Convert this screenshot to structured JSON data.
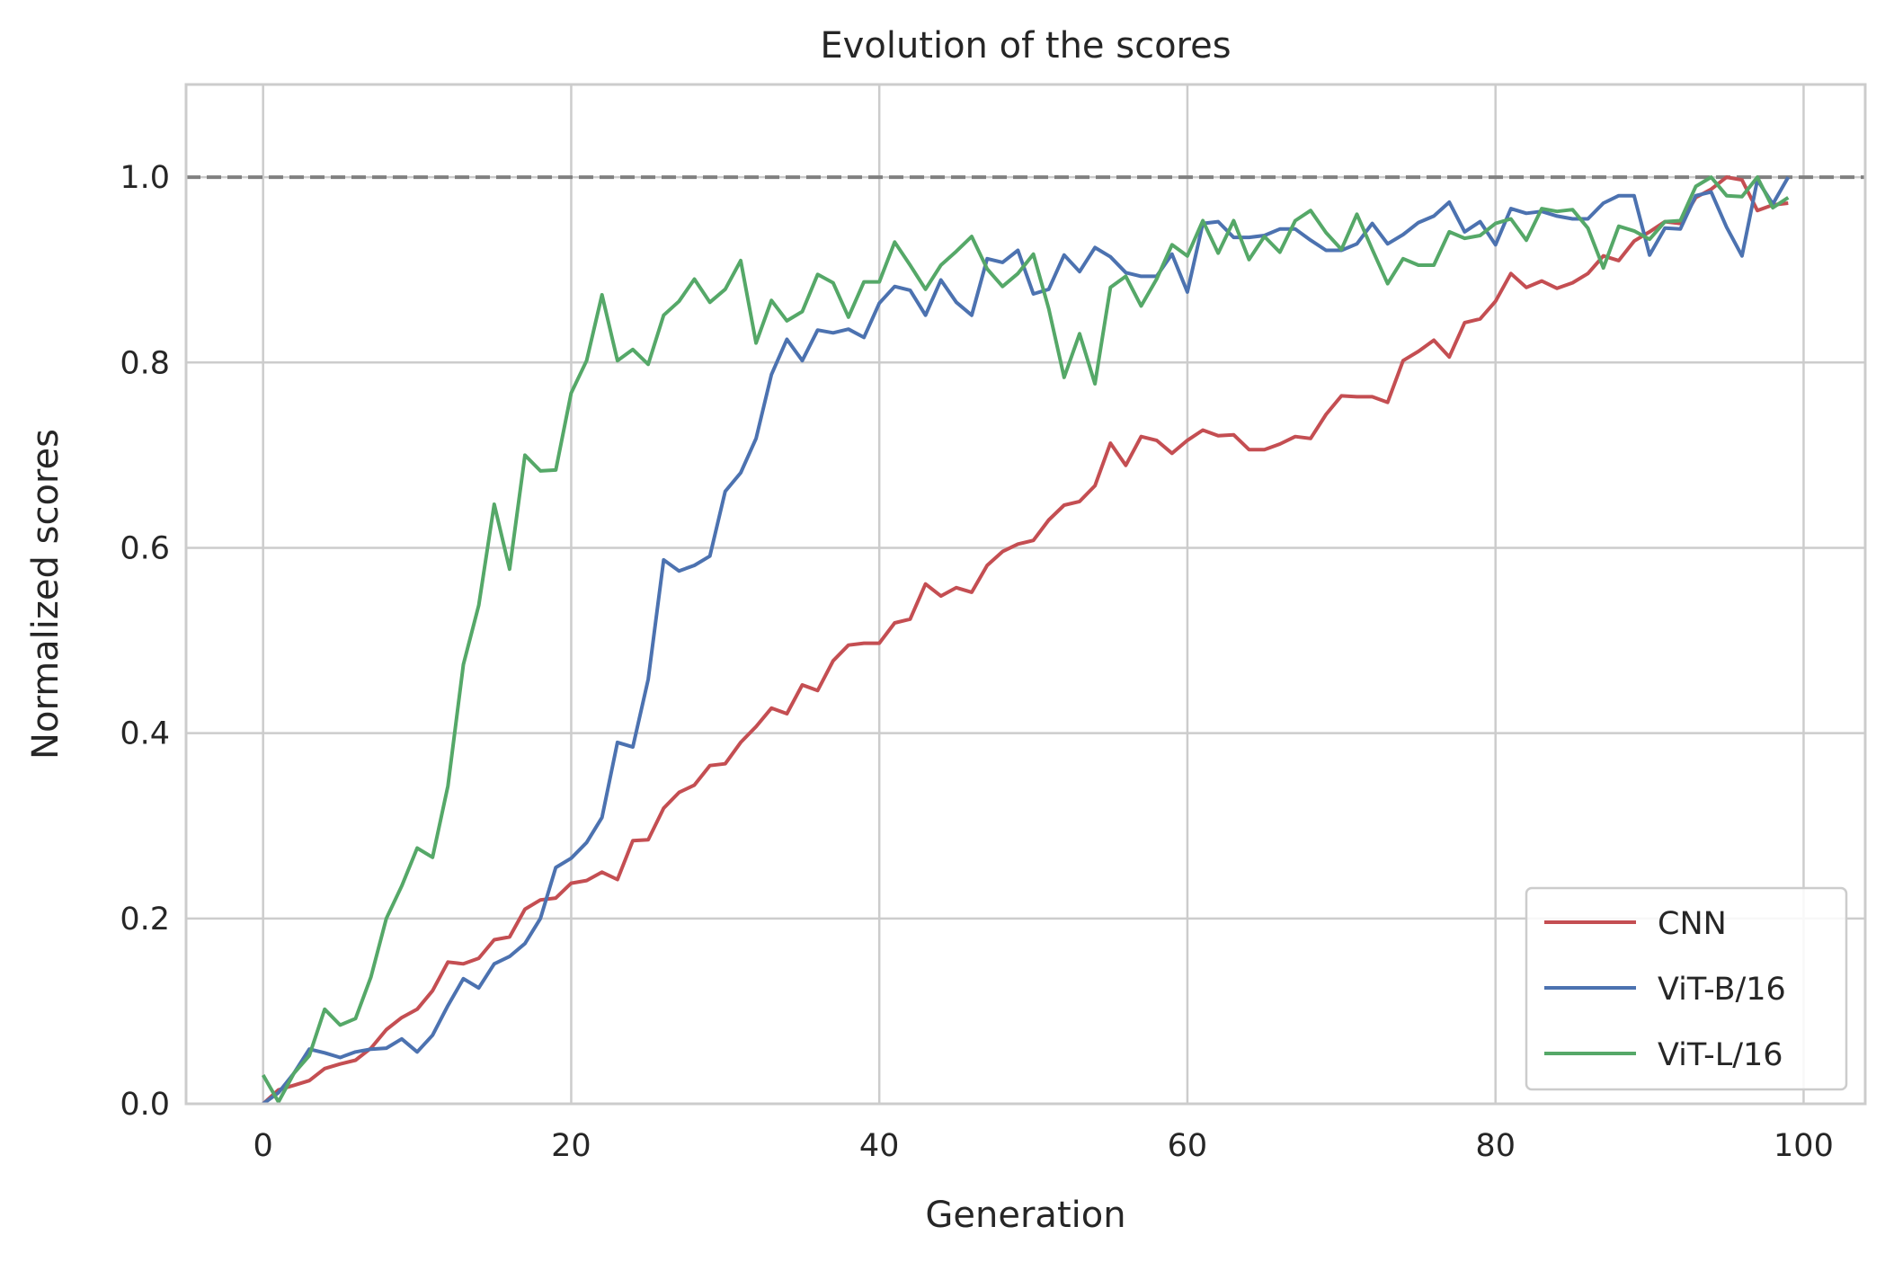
{
  "chart_data": {
    "type": "line",
    "title": "Evolution of the scores",
    "xlabel": "Generation",
    "ylabel": "Normalized scores",
    "xlim": [
      -5,
      104
    ],
    "ylim": [
      0,
      1.1
    ],
    "x_ticks": [
      0,
      20,
      40,
      60,
      80,
      100
    ],
    "y_ticks": [
      0.0,
      0.2,
      0.4,
      0.6,
      0.8,
      1.0
    ],
    "x_tick_labels": [
      "0",
      "20",
      "40",
      "60",
      "80",
      "100"
    ],
    "y_tick_labels": [
      "0.0",
      "0.2",
      "0.4",
      "0.6",
      "0.8",
      "1.0"
    ],
    "grid": true,
    "reference_line": {
      "y": 1.0,
      "style": "dashed",
      "color": "#808080"
    },
    "legend_position": "lower-right",
    "x": [
      0,
      1,
      2,
      3,
      4,
      5,
      6,
      7,
      8,
      9,
      10,
      11,
      12,
      13,
      14,
      15,
      16,
      17,
      18,
      19,
      20,
      21,
      22,
      23,
      24,
      25,
      26,
      27,
      28,
      29,
      30,
      31,
      32,
      33,
      34,
      35,
      36,
      37,
      38,
      39,
      40,
      41,
      42,
      43,
      44,
      45,
      46,
      47,
      48,
      49,
      50,
      51,
      52,
      53,
      54,
      55,
      56,
      57,
      58,
      59,
      60,
      61,
      62,
      63,
      64,
      65,
      66,
      67,
      68,
      69,
      70,
      71,
      72,
      73,
      74,
      75,
      76,
      77,
      78,
      79,
      80,
      81,
      82,
      83,
      84,
      85,
      86,
      87,
      88,
      89,
      90,
      91,
      92,
      93,
      94,
      95,
      96,
      97,
      98,
      99
    ],
    "series": [
      {
        "name": "CNN",
        "color": "#c44e52",
        "values": [
          0.0,
          0.015,
          0.02,
          0.025,
          0.038,
          0.043,
          0.047,
          0.06,
          0.08,
          0.093,
          0.102,
          0.122,
          0.153,
          0.151,
          0.157,
          0.177,
          0.18,
          0.21,
          0.22,
          0.222,
          0.238,
          0.241,
          0.25,
          0.242,
          0.284,
          0.285,
          0.319,
          0.336,
          0.344,
          0.365,
          0.367,
          0.39,
          0.407,
          0.427,
          0.421,
          0.452,
          0.446,
          0.478,
          0.495,
          0.497,
          0.497,
          0.519,
          0.523,
          0.561,
          0.548,
          0.557,
          0.552,
          0.581,
          0.596,
          0.604,
          0.608,
          0.63,
          0.646,
          0.65,
          0.667,
          0.713,
          0.689,
          0.72,
          0.716,
          0.702,
          0.716,
          0.727,
          0.721,
          0.722,
          0.706,
          0.706,
          0.712,
          0.72,
          0.718,
          0.744,
          0.764,
          0.763,
          0.763,
          0.757,
          0.802,
          0.812,
          0.824,
          0.806,
          0.843,
          0.847,
          0.866,
          0.896,
          0.881,
          0.888,
          0.88,
          0.886,
          0.896,
          0.915,
          0.91,
          0.931,
          0.941,
          0.952,
          0.95,
          0.978,
          0.987,
          1.0,
          0.997,
          0.964,
          0.97,
          0.972
        ]
      },
      {
        "name": "ViT-B/16",
        "color": "#4c72b0",
        "values": [
          0.0,
          0.012,
          0.033,
          0.059,
          0.055,
          0.05,
          0.056,
          0.059,
          0.06,
          0.07,
          0.056,
          0.074,
          0.106,
          0.135,
          0.125,
          0.151,
          0.159,
          0.173,
          0.2,
          0.255,
          0.265,
          0.282,
          0.309,
          0.39,
          0.385,
          0.458,
          0.587,
          0.575,
          0.581,
          0.591,
          0.661,
          0.681,
          0.718,
          0.787,
          0.825,
          0.802,
          0.835,
          0.832,
          0.836,
          0.827,
          0.864,
          0.882,
          0.878,
          0.851,
          0.889,
          0.865,
          0.851,
          0.912,
          0.908,
          0.921,
          0.874,
          0.879,
          0.916,
          0.898,
          0.924,
          0.914,
          0.897,
          0.893,
          0.893,
          0.917,
          0.876,
          0.95,
          0.952,
          0.935,
          0.935,
          0.937,
          0.944,
          0.944,
          0.932,
          0.921,
          0.921,
          0.928,
          0.95,
          0.928,
          0.938,
          0.951,
          0.958,
          0.973,
          0.941,
          0.952,
          0.927,
          0.966,
          0.961,
          0.963,
          0.958,
          0.955,
          0.955,
          0.972,
          0.98,
          0.98,
          0.916,
          0.945,
          0.944,
          0.98,
          0.984,
          0.946,
          0.915,
          0.997,
          0.971,
          1.0
        ]
      },
      {
        "name": "ViT-L/16",
        "color": "#55a868",
        "values": [
          0.031,
          0.002,
          0.033,
          0.052,
          0.102,
          0.085,
          0.092,
          0.137,
          0.2,
          0.235,
          0.276,
          0.266,
          0.343,
          0.474,
          0.538,
          0.647,
          0.577,
          0.7,
          0.683,
          0.684,
          0.767,
          0.802,
          0.873,
          0.802,
          0.814,
          0.798,
          0.851,
          0.866,
          0.89,
          0.865,
          0.879,
          0.91,
          0.821,
          0.867,
          0.845,
          0.855,
          0.895,
          0.886,
          0.849,
          0.887,
          0.887,
          0.93,
          0.905,
          0.879,
          0.905,
          0.92,
          0.936,
          0.901,
          0.882,
          0.896,
          0.917,
          0.858,
          0.784,
          0.831,
          0.777,
          0.881,
          0.893,
          0.861,
          0.89,
          0.927,
          0.915,
          0.953,
          0.918,
          0.953,
          0.911,
          0.936,
          0.919,
          0.953,
          0.964,
          0.94,
          0.922,
          0.96,
          0.922,
          0.885,
          0.912,
          0.905,
          0.905,
          0.941,
          0.934,
          0.937,
          0.95,
          0.955,
          0.932,
          0.966,
          0.963,
          0.965,
          0.945,
          0.902,
          0.947,
          0.942,
          0.933,
          0.952,
          0.953,
          0.99,
          1.0,
          0.98,
          0.979,
          1.0,
          0.967,
          0.978
        ]
      }
    ]
  }
}
